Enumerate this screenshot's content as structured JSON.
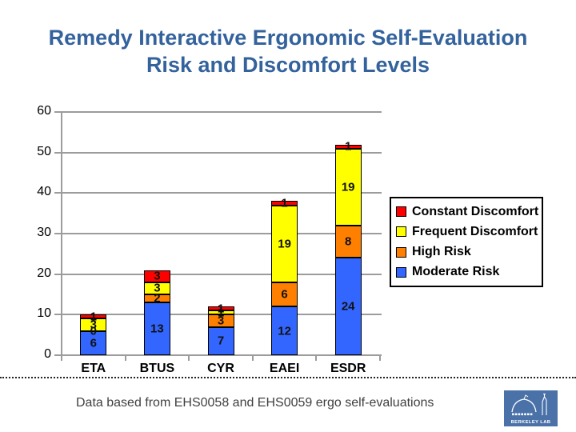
{
  "title": {
    "line1": "Remedy Interactive Ergonomic Self-Evaluation",
    "line2": "Risk and Discomfort Levels",
    "color": "#33629C"
  },
  "caption": "Data based from EHS0058 and EHS0059 ergo self-evaluations",
  "logo": {
    "label": "BERKELEY LAB",
    "bg_color": "#4A72A8"
  },
  "chart_data": {
    "type": "bar",
    "stacked": true,
    "title": "Remedy Interactive Ergonomic Self-Evaluation Risk and Discomfort Levels",
    "categories": [
      "ETA",
      "BTUS",
      "CYR",
      "EAEI",
      "ESDR"
    ],
    "series": [
      {
        "name": "Constant Discomfort",
        "color": "#FF0000",
        "values": [
          1,
          3,
          1,
          1,
          1
        ]
      },
      {
        "name": "Frequent Discomfort",
        "color": "#FFFF00",
        "values": [
          3,
          3,
          1,
          19,
          19
        ]
      },
      {
        "name": "High Risk",
        "color": "#FF8000",
        "values": [
          0,
          2,
          3,
          6,
          8
        ]
      },
      {
        "name": "Moderate Risk",
        "color": "#3366FF",
        "values": [
          6,
          13,
          7,
          12,
          24
        ]
      }
    ],
    "totals": [
      10,
      21,
      12,
      38,
      52
    ],
    "xlabel": "",
    "ylabel": "",
    "ylim": [
      0,
      60
    ],
    "yticks": [
      0,
      10,
      20,
      30,
      40,
      50,
      60
    ],
    "grid": true,
    "gridline_color": "#9C9C9C",
    "data_labels": true,
    "legend_position": "right",
    "legend_order": [
      "Constant Discomfort",
      "Frequent Discomfort",
      "High Risk",
      "Moderate Risk"
    ]
  }
}
